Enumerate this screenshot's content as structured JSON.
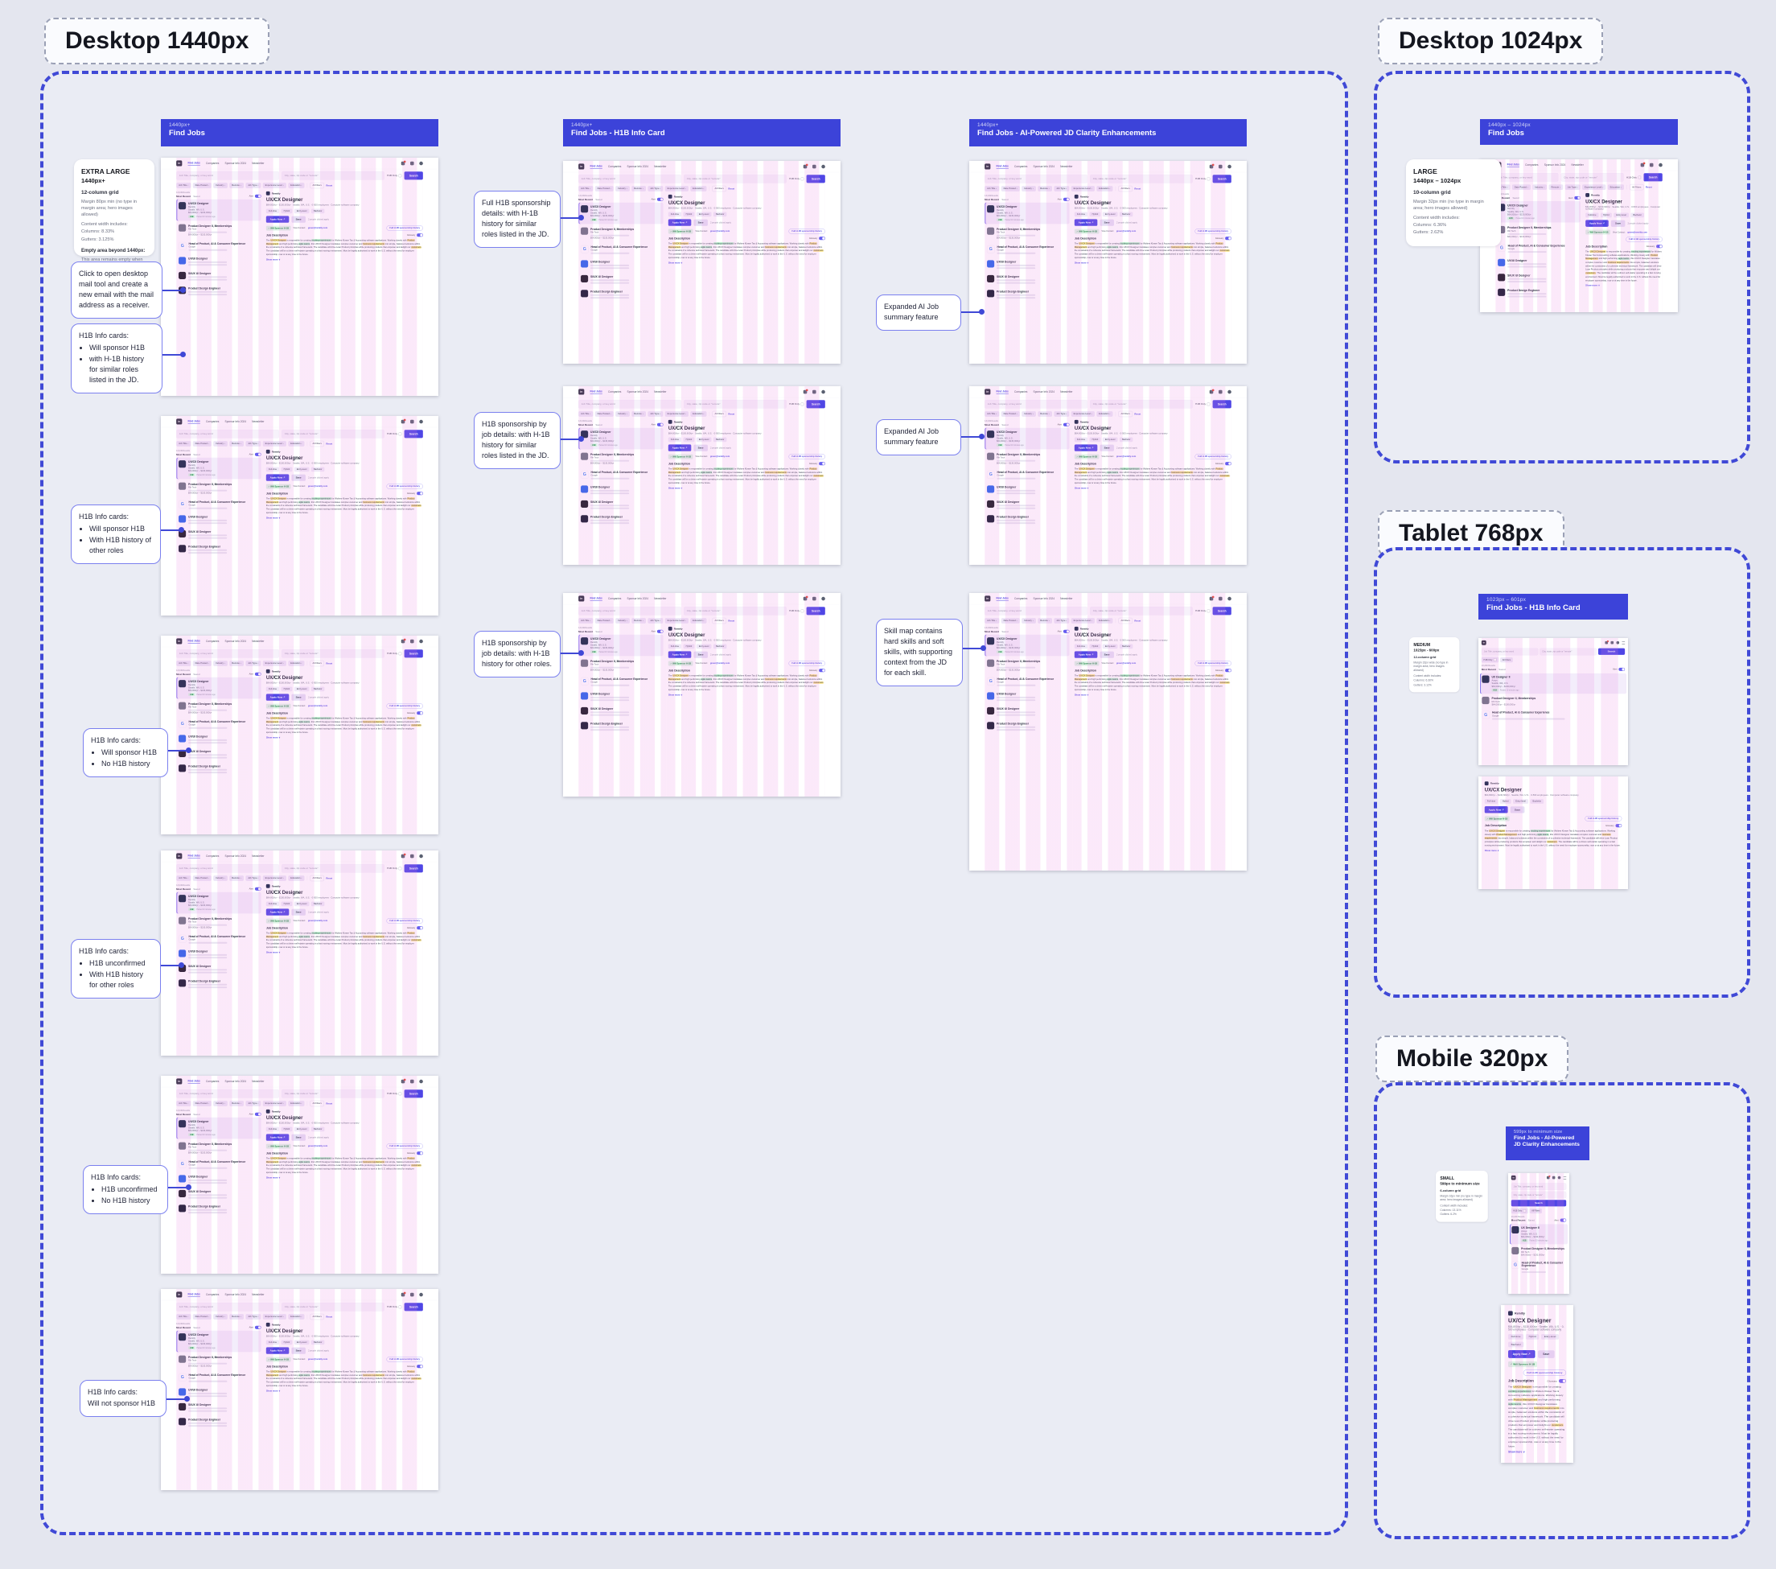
{
  "sections": {
    "desktop1440": {
      "label": "Desktop 1440px"
    },
    "desktop1024": {
      "label": "Desktop 1024px"
    },
    "tablet768": {
      "label": "Tablet 768px"
    },
    "mobile320": {
      "label": "Mobile 320px"
    }
  },
  "frames": {
    "find_jobs": {
      "range": "1440px+",
      "title": "Find Jobs"
    },
    "h1b_card": {
      "range": "1440px+",
      "title": "Find Jobs - H1B Info Card"
    },
    "ai_clarity": {
      "range": "1440px+",
      "title": "Find Jobs - AI-Powered JD Clarity Enhancements"
    },
    "find_jobs_1024": {
      "range": "1440px – 1024px",
      "title": "Find Jobs"
    },
    "h1b_card_tablet": {
      "range": "1023px – 601px",
      "title": "Find Jobs - H1B Info Card"
    },
    "ai_clarity_mobile": {
      "range": "599px to minimum size",
      "title": "Find Jobs - AI-Powered JD Clarity Enhancements"
    }
  },
  "grid_notes": {
    "extra_large": {
      "title": "EXTRA LARGE",
      "range": "1440px+",
      "grid": "12-column grid",
      "margin": "Margin 80px min (no type in margin area; hero images allowed)",
      "content": "Content width includes:",
      "c1": "Columns: 8.33%",
      "c2": "Gutters: 3.125%",
      "empty_title": "Empty area beyond 1440px:",
      "empty_body": "This area remains empty when browser width expands beyond 1440px."
    },
    "large": {
      "title": "LARGE",
      "range": "1440px – 1024px",
      "grid": "10-column grid",
      "margin": "Margin 32px min (no type in margin area; hero images allowed)",
      "content": "Content width includes:",
      "c1": "Columns: 6.36%",
      "c2": "Gutters: 2.62%"
    },
    "medium": {
      "title": "MEDIUM",
      "range": "1023px - 600px",
      "grid": "12-column grid",
      "margin": "Margin 32px wide (no type in margin area; hero images allowed)",
      "content": "Content width includes:",
      "c1": "Columns: 6.30%",
      "c2": "Gutters: 3.12%"
    },
    "small": {
      "title": "SMALL",
      "range": "599px to minimum size",
      "grid": "6-column grid",
      "margin": "Margin 16px min (no type in margin area; hero images allowed)",
      "content": "Content width includes:",
      "c1": "Columns: 13.11%",
      "c2": "Gutters: 6.2%"
    }
  },
  "callouts": {
    "mail": {
      "text": "Click to open desktop mail tool and create a new email with the mail address as a receiver."
    },
    "h1b1": {
      "title": "H1B Info cards:",
      "b1": "Will sponsor H1B",
      "b2": "with H-1B history for similar roles listed in the JD."
    },
    "h1b2": {
      "title": "H1B Info cards:",
      "b1": "Will sponsor H1B",
      "b2": "With H1B history of other roles"
    },
    "h1b3": {
      "title": "H1B Info cards:",
      "b1": "Will sponsor H1B",
      "b2": "No H1B history"
    },
    "h1b4": {
      "title": "H1B Info cards:",
      "b1": "H1B unconfirmed",
      "b2": "With H1B history for other roles"
    },
    "h1b5": {
      "title": "H1B Info cards:",
      "b1": "H1B unconfirmed",
      "b2": "No H1B history"
    },
    "h1b6": {
      "title": "H1B Info cards:",
      "text": "Will not sponsor H1B"
    },
    "full_h1b": {
      "text": "Full H1B sponsorship details: with H-1B history for similar roles listed in the JD."
    },
    "byjob1": {
      "text": "H1B sponsorship by job details: with H-1B history for similar roles listed in the JD."
    },
    "byjob2": {
      "text": "H1B sponsorship by job details: with H-1B history for other roles."
    },
    "ai1": {
      "text": "Expanded AI Job summary feature"
    },
    "ai2": {
      "text": "Expanded AI Job summary feature"
    },
    "skill": {
      "text": "Skill map contains hard skills and soft skills, with supporting context from the JD for each skill."
    }
  },
  "thumb": {
    "nav": {
      "items": [
        "Find Jobs",
        "Companies",
        "Sponsor Info 2024",
        "Newsletter"
      ]
    },
    "search": {
      "keyword": "Job Title, company, or key word",
      "location": "City, state, zip code or \"remote\"",
      "h1b_only": "H1B Only",
      "button": "Search"
    },
    "filters": [
      "Job Title",
      "Date Posted",
      "Industry",
      "Remote",
      "Job Type",
      "Experience Level",
      "Education"
    ],
    "all_filters": "All Filters",
    "reset": "Reset",
    "meta": {
      "results": "13,249 Results",
      "sort": "Most Recent",
      "saved": "Saved",
      "alert": "Alert"
    },
    "jobs": [
      {
        "title": "UX/CX Designer",
        "company": "Remitly",
        "location": "Seattle, WA, U.S.",
        "salary": "$64,000/yr – $130,000/yr",
        "badge": "H1B",
        "posted": "Posted 10 minutes ago"
      },
      {
        "title": "Product Designer II, Memberships",
        "company": "Rih Tech",
        "location": "",
        "salary": "$64,000/yr – $130,000/yr",
        "badge": "",
        "posted": ""
      },
      {
        "title": "Head of Product, AI & Consumer Experience",
        "company": "Google",
        "location": "",
        "salary": "",
        "badge": "",
        "posted": ""
      },
      {
        "title": "UX/UI Designer",
        "company": "",
        "location": "",
        "salary": "",
        "badge": "",
        "posted": ""
      },
      {
        "title": "SI/UX UI Designer",
        "company": "",
        "location": "",
        "salary": "",
        "badge": "",
        "posted": ""
      },
      {
        "title": "Product Design Engineer",
        "company": "",
        "location": "",
        "salary": "",
        "badge": "",
        "posted": ""
      }
    ],
    "jobs_small": [
      {
        "title": "UX Designer II",
        "company": "Ansys",
        "location": "Seattle, WA, U.S.",
        "salary": "$64,000/yr – $130,000/yr",
        "badge": "H1B",
        "posted": "Posted 10 minutes ago"
      }
    ],
    "detail": {
      "company": "Remitly",
      "title": "UX/CX Designer",
      "meta": "$64,800/yr – $130,600/yr   ·   Seattle, WA, U.S.   ·   0-500 employees   ·   Computer software company",
      "tags": [
        "Full-time",
        "Hybrid",
        "Entry-level",
        "Bachelor"
      ],
      "apply": "Apply Now ↗",
      "save": "Save",
      "social": "2 people clicked apply",
      "sponsor_badge": "✓ Will Sponsor H-1B",
      "visa_label": "Visa Contact:",
      "visa_value": "green@remitly.com",
      "history_pill": "Full H-1B sponsorship history",
      "jd_heading": "Job Description",
      "glossary": "Glossary",
      "jd": [
        {
          "t": "The "
        },
        {
          "t": "UX/CX Designer",
          "m": "y"
        },
        {
          "t": " is responsible for creating "
        },
        {
          "t": "exciting experiences",
          "m": "g"
        },
        {
          "t": " for Wolters Kluwer Tax & Accounting software applications. Working closely with "
        },
        {
          "t": "Product Management",
          "m": "y"
        },
        {
          "t": " and high performing "
        },
        {
          "t": "agile teams",
          "m": "g"
        },
        {
          "t": ", this UX/CX Designer translates complex customer and "
        },
        {
          "t": "business requirements",
          "m": "y"
        },
        {
          "t": " into simple, balanced solutions within the constraints of a cohesive technical framework. The candidate will drive Loan Product principles while producing products that empower and delight our "
        },
        {
          "t": "customers",
          "m": "y"
        },
        {
          "t": ". The candidate will be a driven self-starter operating in a fast moving environment. Must be legally authorized to work in the U.S. without the need for employer sponsorship, now or at any time in the future."
        }
      ],
      "show_more": "Show more ∨"
    }
  }
}
